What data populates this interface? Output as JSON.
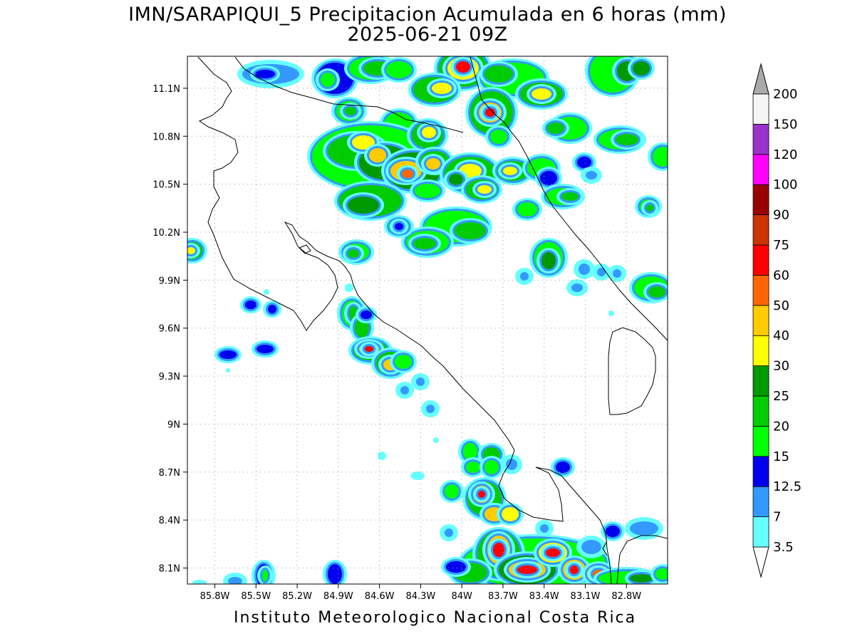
{
  "title_line1": "IMN/SARAPIQUI_5 Precipitacion Acumulada en 6 horas (mm)",
  "title_line2": "2025-06-21 09Z",
  "footer": "Instituto Meteorologico Nacional Costa Rica",
  "map": {
    "lon_range": [
      -86.0,
      -82.5
    ],
    "lat_range": [
      8.0,
      11.3
    ],
    "lat_ticks": [
      "11.1N",
      "10.8N",
      "10.5N",
      "10.2N",
      "9.9N",
      "9.6N",
      "9.3N",
      "9N",
      "8.7N",
      "8.4N",
      "8.1N"
    ],
    "lon_ticks": [
      "85.8W",
      "85.5W",
      "85.2W",
      "84.9W",
      "84.6W",
      "84.3W",
      "84W",
      "83.7W",
      "83.4W",
      "83.1W",
      "82.8W"
    ]
  },
  "colorbar": {
    "labels": [
      "3.5",
      "7",
      "12.5",
      "15",
      "20",
      "25",
      "30",
      "40",
      "50",
      "60",
      "75",
      "90",
      "100",
      "120",
      "150",
      "200"
    ],
    "colors": [
      "#66ffff",
      "#3399ff",
      "#0000ee",
      "#00ff00",
      "#00cc00",
      "#009900",
      "#ffff00",
      "#ffcc00",
      "#ff6600",
      "#ff0000",
      "#cc3300",
      "#990000",
      "#ff00ff",
      "#9933cc",
      "#f5f5f5"
    ],
    "top_arrow_color": "#aaaaaa",
    "bottom_arrow_color": "#ffffff"
  }
}
